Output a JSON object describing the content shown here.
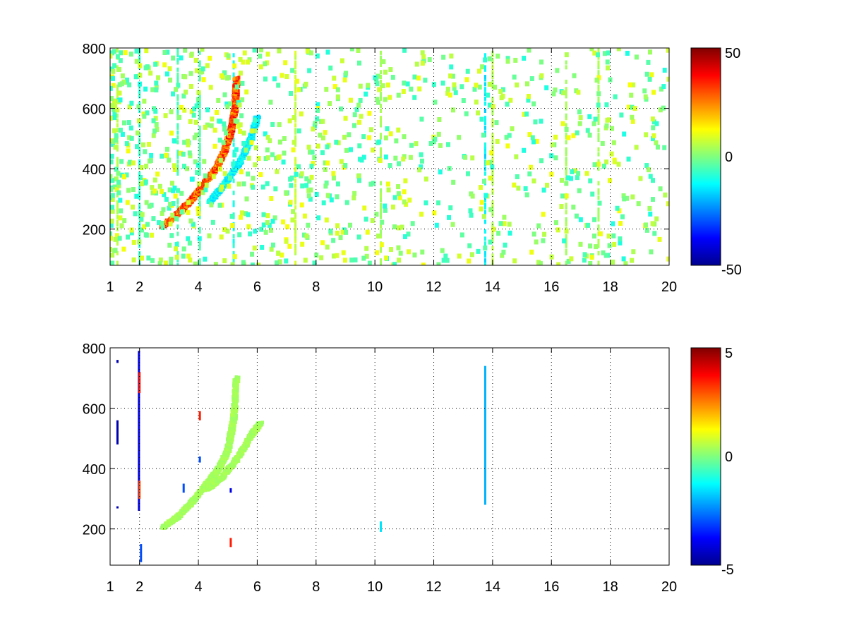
{
  "chart_data": [
    {
      "type": "heatmap",
      "title": "",
      "xlabel": "",
      "ylabel": "",
      "xlim": [
        1,
        20
      ],
      "ylim": [
        80,
        800
      ],
      "x_ticks": [
        1,
        2,
        4,
        6,
        8,
        10,
        12,
        14,
        16,
        18,
        20
      ],
      "x_tick_labels": [
        "1",
        "2",
        "4",
        "6",
        "8",
        "10",
        "12",
        "14",
        "16",
        "18",
        "20"
      ],
      "y_ticks": [
        200,
        400,
        600,
        800
      ],
      "y_tick_labels": [
        "200",
        "400",
        "600",
        "800"
      ],
      "grid": true,
      "colormap": "jet",
      "clim": [
        -50,
        50
      ],
      "colorbar_ticks": [
        50,
        0,
        -50
      ],
      "colorbar_tick_labels": [
        "50",
        "0",
        "-50"
      ],
      "background": "#ffffff",
      "features": [
        {
          "kind": "ridge",
          "polarity": "positive",
          "points": [
            [
              2.8,
              210
            ],
            [
              3.3,
              250
            ],
            [
              3.8,
              300
            ],
            [
              4.2,
              350
            ],
            [
              4.6,
              400
            ],
            [
              4.9,
              460
            ],
            [
              5.1,
              520
            ],
            [
              5.25,
              600
            ],
            [
              5.3,
              700
            ]
          ],
          "peak_value": 40
        },
        {
          "kind": "ridge",
          "polarity": "negative",
          "points": [
            [
              4.4,
              290
            ],
            [
              4.9,
              350
            ],
            [
              5.4,
              420
            ],
            [
              5.8,
              500
            ],
            [
              6.0,
              570
            ]
          ],
          "peak_value": -18
        },
        {
          "kind": "scatter_noise",
          "x_range": [
            1,
            20
          ],
          "y_range": [
            80,
            800
          ],
          "value_range": [
            -10,
            12
          ]
        }
      ],
      "vertical_streaks": [
        {
          "x": 1.25,
          "value": 6
        },
        {
          "x": 2.0,
          "value": -8
        },
        {
          "x": 3.3,
          "value": -6
        },
        {
          "x": 4.05,
          "value": -5
        },
        {
          "x": 5.2,
          "value": -10
        },
        {
          "x": 7.3,
          "value": 8
        },
        {
          "x": 10.2,
          "value": 4
        },
        {
          "x": 13.75,
          "value": -15
        },
        {
          "x": 14.0,
          "value": 6
        },
        {
          "x": 16.5,
          "value": 4
        },
        {
          "x": 17.6,
          "value": 4
        }
      ]
    },
    {
      "type": "heatmap",
      "title": "",
      "xlabel": "",
      "ylabel": "",
      "xlim": [
        1,
        20
      ],
      "ylim": [
        80,
        800
      ],
      "x_ticks": [
        1,
        2,
        4,
        6,
        8,
        10,
        12,
        14,
        16,
        18,
        20
      ],
      "x_tick_labels": [
        "1",
        "2",
        "4",
        "6",
        "8",
        "10",
        "12",
        "14",
        "16",
        "18",
        "20"
      ],
      "y_ticks": [
        200,
        400,
        600,
        800
      ],
      "y_tick_labels": [
        "200",
        "400",
        "600",
        "800"
      ],
      "grid": true,
      "colormap": "jet",
      "clim": [
        -5,
        5
      ],
      "colorbar_ticks": [
        5,
        0,
        -5
      ],
      "colorbar_tick_labels": [
        "5",
        "0",
        "-5"
      ],
      "background": "#ffffff",
      "features": [
        {
          "kind": "ridge",
          "polarity": "positive",
          "points": [
            [
              2.8,
              205
            ],
            [
              3.3,
              240
            ],
            [
              3.8,
              290
            ],
            [
              4.3,
              350
            ],
            [
              4.7,
              400
            ],
            [
              5.0,
              460
            ],
            [
              5.2,
              560
            ],
            [
              5.3,
              700
            ]
          ],
          "peak_value": 0.5
        },
        {
          "kind": "ridge",
          "polarity": "positive",
          "points": [
            [
              4.3,
              330
            ],
            [
              4.8,
              370
            ],
            [
              5.3,
              430
            ],
            [
              5.8,
              510
            ],
            [
              6.1,
              550
            ]
          ],
          "peak_value": 0.5
        }
      ],
      "sparse_marks": [
        {
          "x": 1.25,
          "y0": 480,
          "y1": 560,
          "value": -4.5
        },
        {
          "x": 1.25,
          "y0": 750,
          "y1": 760,
          "value": -4.5
        },
        {
          "x": 1.25,
          "y0": 270,
          "y1": 275,
          "value": -4.5
        },
        {
          "x": 1.98,
          "y0": 260,
          "y1": 790,
          "value": -4.0
        },
        {
          "x": 2.0,
          "y0": 650,
          "y1": 720,
          "value": 3.5
        },
        {
          "x": 2.0,
          "y0": 300,
          "y1": 360,
          "value": 3.0
        },
        {
          "x": 2.05,
          "y0": 90,
          "y1": 150,
          "value": -3.0
        },
        {
          "x": 3.5,
          "y0": 320,
          "y1": 350,
          "value": -3.0
        },
        {
          "x": 4.05,
          "y0": 560,
          "y1": 590,
          "value": 3.5
        },
        {
          "x": 4.05,
          "y0": 420,
          "y1": 440,
          "value": -3.0
        },
        {
          "x": 5.1,
          "y0": 320,
          "y1": 335,
          "value": -4.0
        },
        {
          "x": 5.1,
          "y0": 140,
          "y1": 170,
          "value": 3.5
        },
        {
          "x": 10.2,
          "y0": 190,
          "y1": 225,
          "value": -1.5
        },
        {
          "x": 13.75,
          "y0": 280,
          "y1": 740,
          "value": -2.0
        }
      ]
    }
  ]
}
